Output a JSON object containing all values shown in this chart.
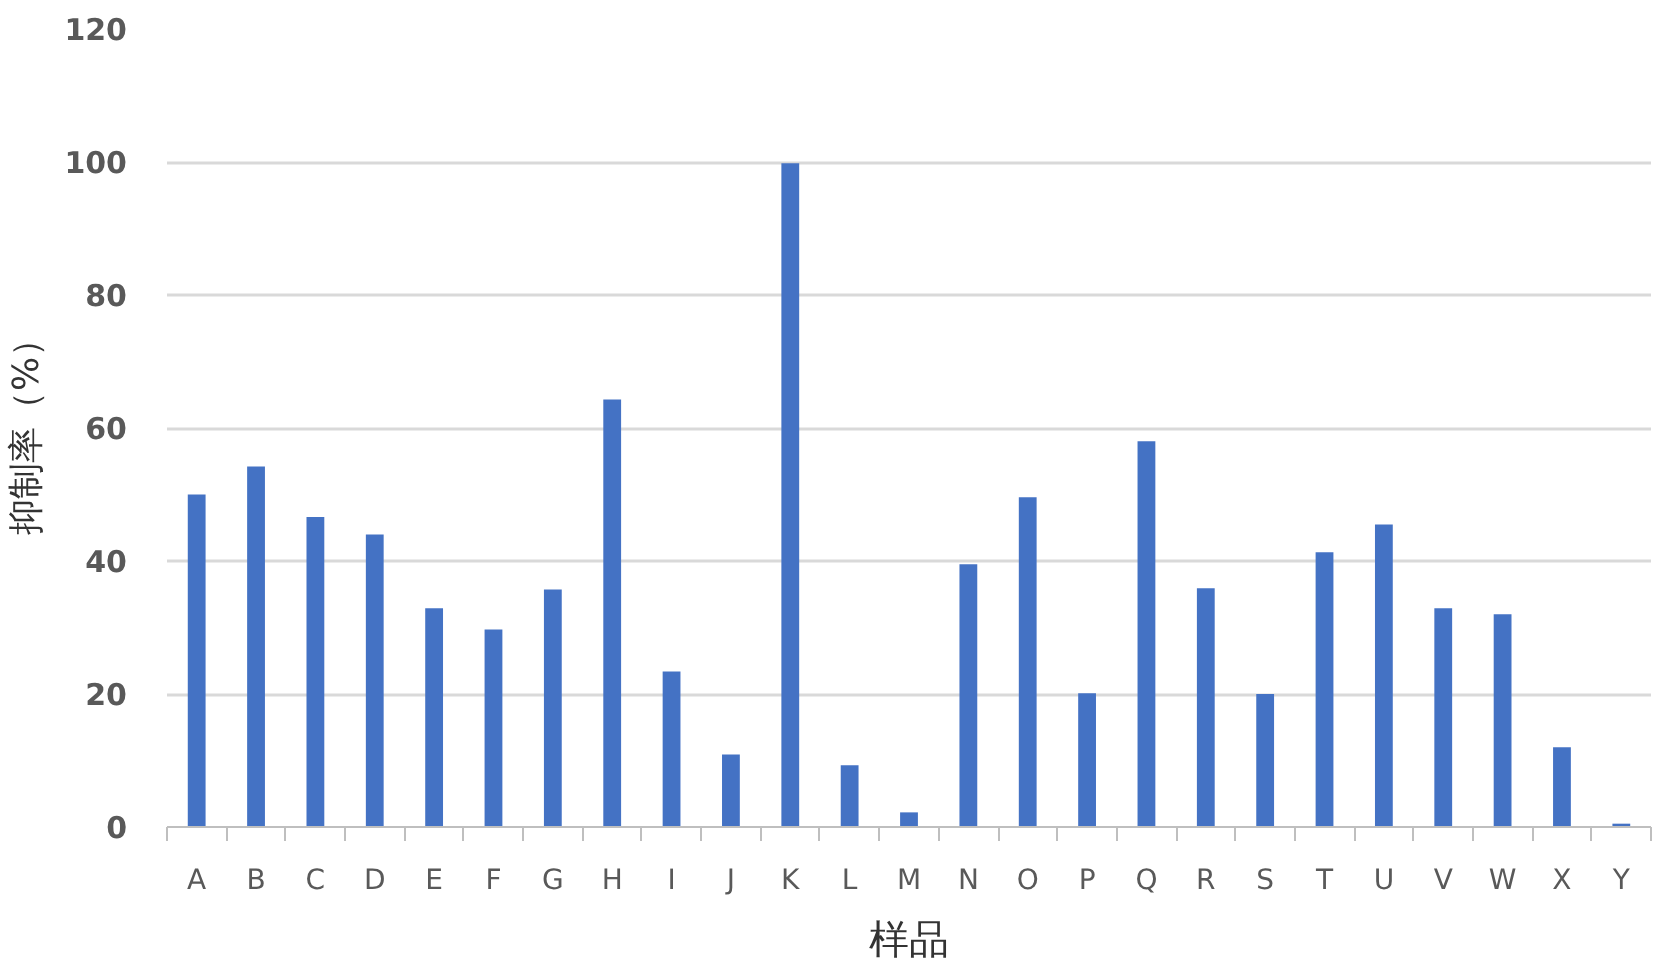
{
  "chart_data": {
    "type": "bar",
    "xlabel": "样品",
    "ylabel": "抑制率（%）",
    "categories": [
      "A",
      "B",
      "C",
      "D",
      "E",
      "F",
      "G",
      "H",
      "I",
      "J",
      "K",
      "L",
      "M",
      "N",
      "O",
      "P",
      "Q",
      "R",
      "S",
      "T",
      "U",
      "V",
      "W",
      "X",
      "Y"
    ],
    "values": [
      50,
      54.2,
      46.6,
      44,
      32.9,
      29.7,
      35.7,
      64.3,
      23.4,
      10.9,
      99.8,
      9.3,
      2.2,
      39.5,
      49.6,
      20.1,
      58,
      35.9,
      20,
      41.3,
      45.5,
      32.9,
      32,
      12,
      0.5
    ],
    "color": "#4472c4",
    "ylim": [
      0,
      120
    ],
    "yticks": [
      0,
      20,
      40,
      60,
      80,
      100,
      120
    ],
    "grid": "y"
  }
}
